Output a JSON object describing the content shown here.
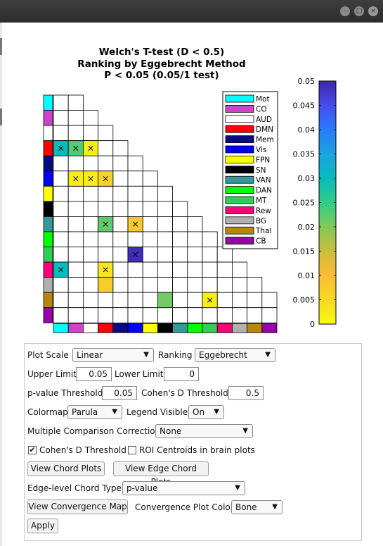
{
  "window": {
    "controls": [
      "minimize",
      "maximize",
      "close"
    ],
    "control_glyphs": [
      "–",
      "□",
      "×"
    ]
  },
  "figure": {
    "title_lines": [
      "Welch's T-test  (D < 0.5)",
      "Ranking by Eggebrecht Method",
      "P < 0.05 (0.05/1 test)"
    ]
  },
  "chart_data": {
    "type": "heatmap",
    "title": "Welch's T-test  (D < 0.5) Ranking by Eggebrecht Method P < 0.05 (0.05/1 test)",
    "networks": [
      "Mot",
      "CO",
      "AUD",
      "DMN",
      "Mem",
      "Vis",
      "FPN",
      "SN",
      "VAN",
      "DAN",
      "MT",
      "Rew",
      "BG",
      "Thal",
      "CB"
    ],
    "network_colors": [
      "#00ffff",
      "#cc44cc",
      "#ffffff",
      "#ff0000",
      "#0a0a80",
      "#0000ff",
      "#ffff00",
      "#000000",
      "#339999",
      "#00ff00",
      "#33cc55",
      "#ff0077",
      "#b0b0b0",
      "#b8860b",
      "#9900aa"
    ],
    "significant_cells": [
      {
        "row": "DMN",
        "col": "Mot",
        "value": 0.03,
        "marked": true
      },
      {
        "row": "DMN",
        "col": "CO",
        "value": 0.023,
        "marked": true
      },
      {
        "row": "DMN",
        "col": "AUD",
        "value": 0.002,
        "marked": true
      },
      {
        "row": "Vis",
        "col": "CO",
        "value": 0.002,
        "marked": true
      },
      {
        "row": "Vis",
        "col": "AUD",
        "value": 0.002,
        "marked": true
      },
      {
        "row": "Vis",
        "col": "DMN",
        "value": 0.006,
        "marked": true
      },
      {
        "row": "VAN",
        "col": "DMN",
        "value": 0.022,
        "marked": true
      },
      {
        "row": "VAN",
        "col": "Vis",
        "value": 0.008,
        "marked": true
      },
      {
        "row": "MT",
        "col": "Vis",
        "value": 0.049,
        "marked": true
      },
      {
        "row": "Rew",
        "col": "Mot",
        "value": 0.03,
        "marked": true
      },
      {
        "row": "Rew",
        "col": "DMN",
        "value": 0.003,
        "marked": true
      },
      {
        "row": "BG",
        "col": "DMN",
        "value": 0.007,
        "marked": false
      },
      {
        "row": "Thal",
        "col": "SN",
        "value": 0.021,
        "marked": false
      },
      {
        "row": "Thal",
        "col": "MT",
        "value": 0.002,
        "marked": true
      }
    ],
    "colorbar": {
      "colormap": "Parula",
      "range": [
        0,
        0.05
      ],
      "tick_labels": [
        "0.05",
        "0.045",
        "0.04",
        "0.035",
        "0.03",
        "0.025",
        "0.02",
        "0.015",
        "0.01",
        "0.005",
        "0"
      ]
    },
    "legend_placement": "top-right"
  },
  "controls": {
    "plot_scale": {
      "label": "Plot Scale",
      "value": "Linear"
    },
    "ranking": {
      "label": "Ranking",
      "value": "Eggebrecht"
    },
    "upper_limit": {
      "label": "Upper Limit",
      "value": "0.05"
    },
    "lower_limit": {
      "label": "Lower Limit",
      "value": "0"
    },
    "p_threshold": {
      "label": "p-value Threshold",
      "value": "0.05"
    },
    "d_threshold": {
      "label": "Cohen's D Threshold",
      "value": "0.5"
    },
    "colormap": {
      "label": "Colormap",
      "value": "Parula"
    },
    "legend_visible": {
      "label": "Legend Visible",
      "value": "On"
    },
    "mcc": {
      "label": "Multiple Comparison Correction",
      "value": "None"
    },
    "cohens_d_checkbox": {
      "label": "Cohen's D Threshold",
      "checked": true,
      "check_glyph": "✔"
    },
    "roi_checkbox": {
      "label": "ROI Centroids in brain plots",
      "checked": false
    },
    "view_chord": "View Chord Plots",
    "view_edge_chord": "View Edge Chord Plots",
    "edge_chord_type": {
      "label": "Edge-level Chord Type",
      "value": "p-value"
    },
    "view_convergence": "View Convergence Map",
    "convergence_color": {
      "label": "Convergence Plot Color",
      "value": "Bone"
    },
    "apply": "Apply",
    "dropdown_arrow": "▼"
  }
}
